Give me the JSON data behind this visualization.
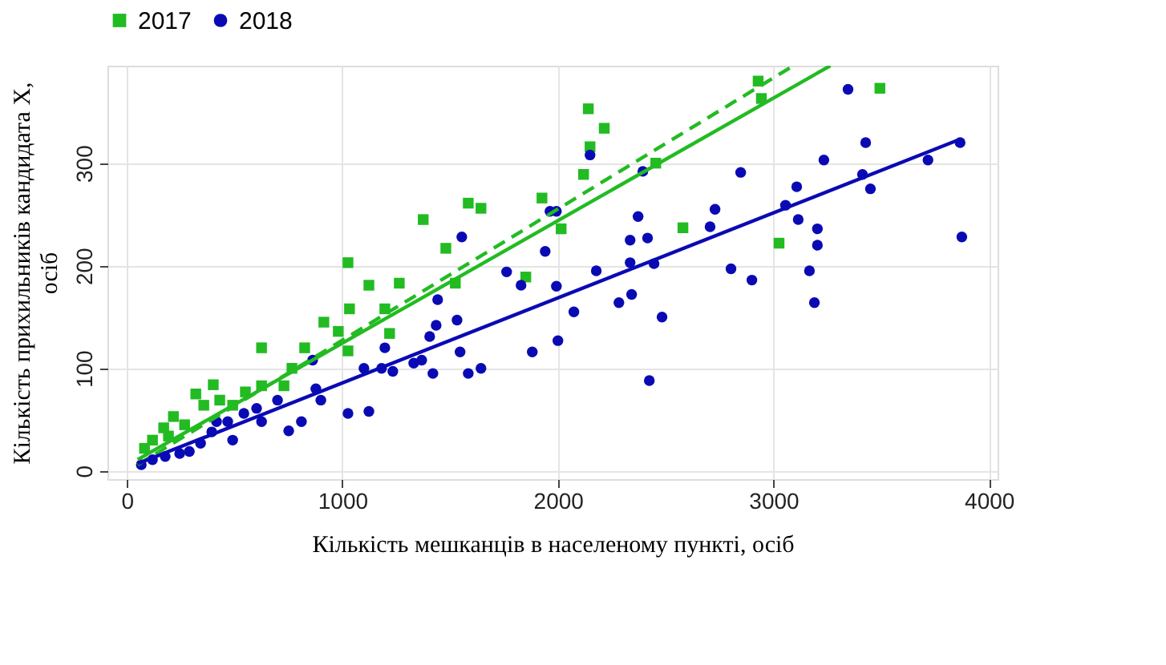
{
  "chart_data": {
    "type": "scatter",
    "xlabel": "Кількість мешканців в населеному пункті, осіб",
    "ylabel": "Кількість прихильників кандидата X, осіб",
    "xlim": [
      -90,
      4040
    ],
    "xticks": [
      0,
      1000,
      2000,
      3000,
      4000
    ],
    "ylim": [
      -8,
      395
    ],
    "yticks": [
      0,
      100,
      200,
      300
    ],
    "grid": true,
    "legend": "top",
    "series": [
      {
        "name": "2017",
        "color": "#22bb22",
        "marker": "square",
        "x": [
          1926,
          1851,
          2015,
          2141,
          2215,
          2149,
          2119,
          2454,
          2580,
          2929,
          2944,
          3026,
          3494,
          1584,
          1643,
          1375,
          1480,
          1524,
          1026,
          1123,
          1264,
          1033,
          914,
          981,
          1197,
          1219,
          1026,
          625,
          825,
          766,
          729,
          625,
          550,
          401,
          320,
          357,
          216,
          431,
          491,
          171,
          119,
          268,
          82,
          193
        ],
        "values": [
          266,
          189,
          236,
          353,
          334,
          316,
          289,
          300,
          237,
          380,
          363,
          222,
          373,
          261,
          256,
          245,
          217,
          183,
          203,
          181,
          183,
          158,
          145,
          136,
          158,
          134,
          117,
          120,
          120,
          100,
          83,
          83,
          77,
          84,
          75,
          64,
          53,
          69,
          64,
          42,
          30,
          45,
          22,
          34
        ]
      },
      {
        "name": "2018",
        "color": "#0a0ab4",
        "marker": "circle",
        "x": [
          67,
          119,
          178,
          245,
          290,
          342,
          394,
          416,
          468,
          491,
          543,
          602,
          625,
          699,
          751,
          810,
          877,
          862,
          900,
          1026,
          1123,
          1100,
          1182,
          1234,
          1197,
          1331,
          1368,
          1420,
          1405,
          1435,
          1532,
          1546,
          1584,
          1643,
          1442,
          1554,
          1762,
          1829,
          1881,
          1941,
          1963,
          1993,
          2000,
          1993,
          2074,
          2149,
          2178,
          2283,
          2342,
          2335,
          2335,
          2372,
          2416,
          2394,
          2424,
          2446,
          2483,
          2729,
          2706,
          2803,
          2848,
          2900,
          3056,
          3108,
          3115,
          3167,
          3190,
          3204,
          3204,
          3234,
          3346,
          3428,
          3413,
          3450,
          3717,
          3866,
          3874
        ],
        "values": [
          6,
          11,
          14,
          17,
          19,
          27,
          38,
          48,
          48,
          30,
          56,
          61,
          48,
          69,
          39,
          48,
          80,
          108,
          69,
          56,
          58,
          100,
          100,
          97,
          120,
          105,
          108,
          95,
          131,
          142,
          147,
          116,
          95,
          100,
          167,
          228,
          194,
          181,
          116,
          214,
          253,
          253,
          127,
          180,
          155,
          308,
          195,
          164,
          172,
          203,
          225,
          248,
          227,
          292,
          88,
          202,
          150,
          255,
          238,
          197,
          291,
          186,
          259,
          277,
          245,
          195,
          164,
          220,
          236,
          303,
          372,
          320,
          289,
          275,
          303,
          320,
          228
        ]
      },
      {
        "type": "line",
        "color": "#22bb22",
        "line_style": "solid",
        "x": [
          50,
          3264
        ],
        "values": [
          11,
          395
        ]
      },
      {
        "type": "line",
        "color": "#22bb22",
        "line_style": "dashed",
        "x": [
          50,
          3093
        ],
        "values": [
          6,
          395
        ]
      },
      {
        "type": "line",
        "color": "#0a0ab4",
        "line_style": "solid",
        "x": [
          50,
          3850
        ],
        "values": [
          7,
          322
        ]
      }
    ]
  }
}
